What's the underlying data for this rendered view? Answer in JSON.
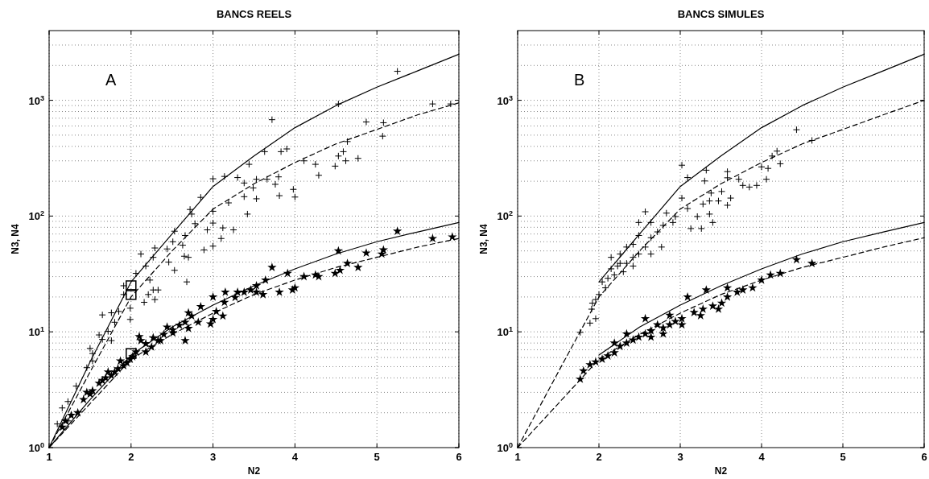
{
  "chart_data": [
    {
      "type": "scatter",
      "title": "BANCS REELS",
      "xlabel": "N2",
      "ylabel": "N3, N4",
      "annotations": [
        "A"
      ],
      "xlim": [
        1,
        6
      ],
      "xticks": [
        1,
        2,
        3,
        4,
        5,
        6
      ],
      "ylim": [
        1,
        4000
      ],
      "yticks": [
        {
          "value": 1,
          "label": "10$^{0}$"
        },
        {
          "value": 10,
          "label": "10$^{1}$"
        },
        {
          "value": 100,
          "label": "10$^{2}$"
        },
        {
          "value": 1000,
          "label": "10$^{3}$"
        }
      ],
      "log": "y",
      "grid": true,
      "series": [
        {
          "type": "line",
          "color": "#000000",
          "marker": "none",
          "line_style": "solid",
          "x": [
            1,
            1.5,
            2,
            2.5,
            3,
            3.5,
            4,
            4.5,
            5,
            5.5,
            6
          ],
          "values": [
            1,
            5.5,
            27,
            70,
            180,
            330,
            580,
            900,
            1300,
            1800,
            2500
          ]
        },
        {
          "type": "line",
          "color": "#000000",
          "marker": "none",
          "line_style": "dashed",
          "x": [
            1,
            1.5,
            2,
            2.5,
            3,
            3.5,
            4,
            4.5,
            5,
            5.5,
            6
          ],
          "values": [
            1,
            4.5,
            20,
            50,
            115,
            190,
            290,
            420,
            560,
            750,
            950
          ]
        },
        {
          "type": "line",
          "color": "#000000",
          "marker": "none",
          "line_style": "solid",
          "x": [
            1,
            1.5,
            2,
            2.5,
            3,
            3.5,
            4,
            4.5,
            5,
            5.5,
            6
          ],
          "values": [
            1,
            2.6,
            6.3,
            11,
            17,
            25,
            35,
            47,
            60,
            73,
            88
          ]
        },
        {
          "type": "line",
          "color": "#000000",
          "marker": "none",
          "line_style": "dashed",
          "x": [
            1,
            1.5,
            2,
            2.5,
            3,
            3.5,
            4,
            4.5,
            5,
            5.5,
            6
          ],
          "values": [
            1,
            2.4,
            5.8,
            9.5,
            14.5,
            21,
            28,
            36,
            44,
            54,
            64
          ]
        },
        {
          "color": "#000000",
          "marker": "cross",
          "x": [
            5.25,
            4.53,
            5.68,
            5.9,
            3.72,
            4.87,
            5.08,
            5.07,
            4.64,
            3.63,
            3.83,
            3.9,
            4.53,
            4.59,
            4.49,
            4.62,
            4.77,
            4.11,
            4.25,
            4.29,
            3.44,
            3.0,
            3.14,
            3.3,
            3.38,
            3.53,
            3.66,
            3.8,
            3.76,
            3.98,
            4.0,
            3.81,
            3.49,
            3.38,
            3.53,
            3.42,
            2.85,
            3.19,
            2.72,
            2.74,
            3.0,
            2.93,
            2.78,
            3.0,
            3.12,
            3.25,
            3.1,
            3.0,
            2.89,
            2.66,
            2.63,
            2.53,
            2.51,
            2.44,
            2.46,
            2.65,
            2.7,
            2.53,
            2.68,
            2.29,
            2.27,
            2.12,
            2.18,
            2.06,
            2.23,
            2.27,
            2.33,
            2.21,
            2.16,
            2.29,
            1.99,
            1.91,
            1.91,
            1.99,
            1.85,
            1.76,
            1.65,
            1.8,
            1.72,
            1.65,
            1.61,
            1.76,
            1.53,
            1.5,
            1.53,
            1.46,
            1.33,
            1.23,
            1.16,
            1.1,
            1.23
          ],
          "values": [
            1780,
            930,
            930,
            930,
            680,
            650,
            640,
            490,
            440,
            360,
            360,
            380,
            330,
            360,
            270,
            300,
            315,
            300,
            280,
            225,
            280,
            210,
            220,
            215,
            193,
            208,
            208,
            218,
            188,
            170,
            146,
            150,
            175,
            147,
            141,
            104,
            145,
            130,
            114,
            104,
            110,
            76,
            86,
            87,
            79,
            76,
            64,
            55,
            51,
            68,
            56,
            74,
            60,
            52,
            40,
            45,
            44,
            34,
            27,
            53,
            44,
            47,
            37,
            32,
            28,
            23,
            23,
            21,
            18,
            19,
            16,
            21,
            25,
            12.8,
            15,
            14.6,
            14,
            12.1,
            10.1,
            8.6,
            9.4,
            8.4,
            6.5,
            7.2,
            5.6,
            4.9,
            3.4,
            2.5,
            2.2,
            1.6,
            1.7
          ]
        },
        {
          "color": "#000000",
          "marker": "star",
          "x": [
            5.92,
            5.68,
            5.25,
            5.08,
            5.06,
            4.87,
            4.77,
            4.64,
            4.53,
            4.55,
            4.49,
            4.29,
            4.25,
            4.11,
            4.0,
            3.97,
            3.91,
            3.81,
            3.72,
            3.64,
            3.53,
            3.53,
            3.46,
            3.38,
            3.3,
            3.15,
            3.0,
            3.14,
            3.04,
            3.0,
            3.12,
            2.85,
            2.74,
            2.66,
            2.7,
            2.59,
            2.51,
            2.44,
            2.51,
            2.66,
            2.7,
            2.4,
            2.33,
            2.27,
            2.25,
            2.18,
            2.12,
            2.18,
            2.06,
            2.02,
            1.99,
            1.95,
            1.91,
            1.87,
            1.84,
            1.8,
            1.76,
            1.72,
            1.69,
            1.65,
            1.61,
            1.53,
            1.5,
            1.46,
            1.42,
            1.35,
            1.27,
            1.2,
            1.16,
            2.1,
            2.36,
            2.82,
            2.97,
            3.27,
            3.61
          ],
          "values": [
            66,
            64,
            74,
            51,
            47,
            48,
            36,
            39,
            50,
            34,
            32,
            30,
            31,
            30,
            24,
            23,
            32,
            22,
            36,
            28,
            25,
            22,
            23,
            22,
            22,
            22,
            20,
            18,
            15,
            12.8,
            13.7,
            16.5,
            13.7,
            12.1,
            14.6,
            11.4,
            10.4,
            11,
            9.8,
            8.4,
            10.7,
            9.5,
            8.4,
            8.9,
            7.4,
            7.9,
            8.4,
            6.7,
            6.7,
            6.1,
            5.8,
            5.4,
            5.1,
            5.6,
            4.8,
            4.5,
            4.2,
            4.5,
            4.0,
            3.8,
            3.6,
            3.1,
            2.9,
            3.0,
            2.6,
            2.0,
            1.9,
            1.7,
            1.5,
            9.1,
            8.4,
            12.1,
            11.7,
            19.8,
            21
          ]
        },
        {
          "color": "#000000",
          "marker": "square",
          "x": [
            2,
            2,
            2
          ],
          "values": [
            25,
            21,
            6.5
          ]
        }
      ]
    },
    {
      "type": "scatter",
      "title": "BANCS SIMULES",
      "xlabel": "N2",
      "ylabel": "N3, N4",
      "annotations": [
        "B"
      ],
      "xlim": [
        1,
        6
      ],
      "xticks": [
        1,
        2,
        3,
        4,
        5,
        6
      ],
      "ylim": [
        1,
        4000
      ],
      "yticks": [
        {
          "value": 1,
          "label": "10$^{0}$"
        },
        {
          "value": 10,
          "label": "10$^{1}$"
        },
        {
          "value": 100,
          "label": "10$^{2}$"
        },
        {
          "value": 1000,
          "label": "10$^{3}$"
        }
      ],
      "log": "y",
      "grid": true,
      "series": [
        {
          "type": "line",
          "color": "#000000",
          "marker": "none",
          "line_style": "solid",
          "x": [
            2,
            2.5,
            3,
            3.5,
            4,
            4.5,
            5,
            5.5,
            6
          ],
          "values": [
            27,
            70,
            180,
            330,
            580,
            900,
            1300,
            1800,
            2500
          ]
        },
        {
          "type": "line",
          "color": "#000000",
          "marker": "none",
          "line_style": "dashed",
          "x": [
            1,
            1.5,
            2,
            2.5,
            3,
            3.5,
            4,
            4.5,
            5,
            5.5,
            6
          ],
          "values": [
            1,
            4.5,
            20,
            50,
            115,
            190,
            290,
            420,
            560,
            750,
            1000
          ]
        },
        {
          "type": "line",
          "color": "#000000",
          "marker": "none",
          "line_style": "solid",
          "x": [
            2,
            2.5,
            3,
            3.5,
            4,
            4.5,
            5,
            5.5,
            6
          ],
          "values": [
            6.3,
            11,
            17,
            25,
            35,
            47,
            60,
            73,
            88
          ]
        },
        {
          "type": "line",
          "color": "#000000",
          "marker": "none",
          "line_style": "dashed",
          "x": [
            1,
            1.5,
            2,
            2.5,
            3,
            3.5,
            4,
            4.5,
            5,
            5.5,
            6
          ],
          "values": [
            1,
            2.4,
            5.8,
            9.5,
            14.5,
            21,
            28,
            36,
            44,
            54,
            65
          ]
        },
        {
          "color": "#000000",
          "marker": "cross",
          "x": [
            4.43,
            4.62,
            4.19,
            4.13,
            4.23,
            4.08,
            4.0,
            4.06,
            3.94,
            3.85,
            3.77,
            3.72,
            3.58,
            3.58,
            3.62,
            3.58,
            3.51,
            3.47,
            3.38,
            3.36,
            3.28,
            3.36,
            3.4,
            3.26,
            3.13,
            3.21,
            3.09,
            3.02,
            3.09,
            3.3,
            3.32,
            3.02,
            2.94,
            2.91,
            2.83,
            2.79,
            2.72,
            2.77,
            2.64,
            2.57,
            2.64,
            2.49,
            2.42,
            2.49,
            2.34,
            2.26,
            2.34,
            2.23,
            2.15,
            2.19,
            2.11,
            2.3,
            2.42,
            2.08,
            2.04,
            2.0,
            1.96,
            1.92,
            1.91,
            1.96,
            1.89,
            1.77,
            2.15,
            2.26,
            2.42,
            2.57,
            2.49,
            2.64
          ],
          "values": [
            557,
            450,
            364,
            330,
            283,
            258,
            266,
            208,
            184,
            178,
            184,
            208,
            242,
            214,
            143,
            124,
            163,
            135,
            158,
            135,
            127,
            104,
            88,
            78,
            78,
            99,
            116,
            275,
            215,
            201,
            249,
            143,
            99,
            88,
            106,
            83,
            73,
            54,
            65,
            109,
            88,
            68,
            57,
            47,
            54,
            47,
            39,
            37,
            44,
            31,
            29,
            33,
            44,
            24,
            27,
            21,
            19,
            17.7,
            15.7,
            13.0,
            11.9,
            9.9,
            35,
            39,
            37,
            54,
            88,
            47
          ]
        },
        {
          "color": "#000000",
          "marker": "star",
          "x": [
            4.62,
            4.43,
            4.23,
            4.11,
            4.0,
            3.89,
            3.77,
            3.7,
            3.58,
            3.58,
            3.51,
            3.4,
            3.32,
            3.28,
            3.17,
            3.09,
            3.02,
            2.94,
            2.87,
            2.79,
            2.72,
            2.64,
            2.57,
            2.57,
            2.49,
            2.42,
            2.34,
            2.26,
            2.19,
            2.11,
            2.04,
            1.96,
            1.89,
            1.81,
            1.77,
            2.64,
            2.79,
            3.02,
            3.25,
            3.47,
            2.34,
            2.19,
            2.87
          ],
          "values": [
            39,
            42,
            32,
            31,
            28,
            24,
            23,
            22,
            24,
            20,
            17.7,
            16.7,
            23,
            15.7,
            14.7,
            20,
            13.0,
            12.3,
            11.5,
            10.8,
            11.5,
            10.2,
            13.0,
            9.6,
            9.0,
            8.5,
            8.0,
            7.5,
            6.6,
            6.2,
            5.8,
            5.5,
            5.2,
            4.6,
            3.9,
            9.0,
            9.6,
            11.5,
            13.8,
            15.7,
            9.6,
            8.0,
            13.9
          ]
        }
      ]
    }
  ]
}
